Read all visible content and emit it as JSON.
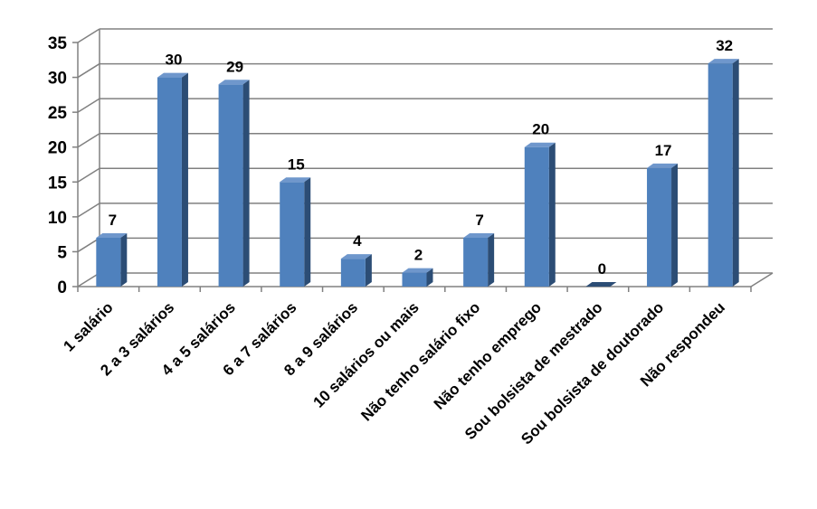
{
  "chart_data": {
    "type": "bar",
    "title": "",
    "xlabel": "",
    "ylabel": "",
    "categories": [
      "1 salário",
      "2 a 3 salários",
      "4 a 5 salários",
      "6 a 7 salários",
      "8 a 9 salários",
      "10 salários ou mais",
      "Não tenho salário fixo",
      "Não tenho emprego",
      "Sou bolsista de mestrado",
      "Sou bolsista de doutorado",
      "Não respondeu"
    ],
    "values": [
      7,
      30,
      29,
      15,
      4,
      2,
      7,
      20,
      0,
      17,
      32
    ],
    "ylim": [
      0,
      35
    ],
    "yticks": [
      0,
      5,
      10,
      15,
      20,
      25,
      30,
      35
    ],
    "grid": true,
    "legend": "none",
    "style": "3d-column",
    "colors": {
      "front": "#4F81BD",
      "side": "#2C4D75",
      "top": "#6F97CC",
      "grid": "#808080"
    }
  }
}
